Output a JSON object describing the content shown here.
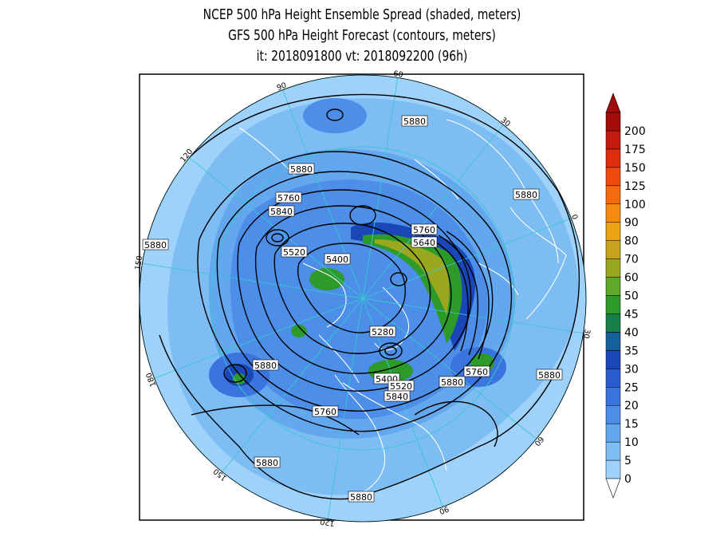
{
  "title": {
    "line1": "NCEP 500 hPa Height Ensemble Spread (shaded, meters)",
    "line2": "GFS 500 hPa Height Forecast (contours, meters)",
    "line3": "it: 2018091800       vt: 2018092200 (96h)"
  },
  "map": {
    "projection": "north-polar-stereographic",
    "meridian_labels": [
      "60",
      "30",
      "0",
      "30",
      "60",
      "90",
      "120",
      "150",
      "180",
      "150",
      "120",
      "90"
    ],
    "contour_labels": [
      "5880",
      "5880",
      "5880",
      "5760",
      "5840",
      "5880",
      "5520",
      "5400",
      "5760",
      "5640",
      "5280",
      "5880",
      "5760",
      "5400",
      "5520",
      "5840",
      "5880",
      "5880",
      "5760",
      "5880",
      "5880"
    ]
  },
  "colorbar": {
    "ticks": [
      "0",
      "5",
      "10",
      "15",
      "20",
      "25",
      "30",
      "35",
      "40",
      "45",
      "50",
      "60",
      "70",
      "80",
      "90",
      "100",
      "125",
      "150",
      "175",
      "200"
    ],
    "colors": [
      "#9fd2fb",
      "#7ebdf3",
      "#63a7ee",
      "#4d8ee8",
      "#3a74de",
      "#2a5ccf",
      "#1a47b8",
      "#13609a",
      "#168047",
      "#2d9a2a",
      "#5ea82a",
      "#9aa820",
      "#c8a21a",
      "#e9a313",
      "#f48b10",
      "#f56a0f",
      "#ef4a10",
      "#df2d10",
      "#c41a0e",
      "#a10c0b"
    ]
  },
  "palette": {
    "ocean_light": "#9fd2fb",
    "spread_mid": "#4d8ee8",
    "spread_high": "#1a47b8",
    "spread_green": "#2d9a2a",
    "spread_olive": "#9aa820",
    "contour": "#000000",
    "coastline": "#ffffff",
    "graticule": "#38c8d0"
  }
}
